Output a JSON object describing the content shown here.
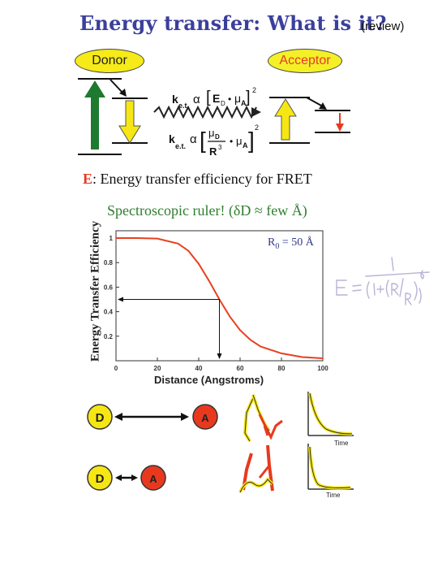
{
  "title": "Energy transfer: What is it?",
  "review_label": "(review)",
  "donor_label": "Donor",
  "acceptor_label": "Acceptor",
  "rate_expr": {
    "k": "k",
    "sub": "e.t.",
    "prop": "α",
    "e_term": "E",
    "e_sub": "D",
    "bullet": "•",
    "mu": "μ",
    "mu_sub_a": "A",
    "mu_sub_d": "D",
    "square": "2",
    "r": "R",
    "r_exp": "3"
  },
  "efficiency": {
    "letter": "E",
    "text": ": Energy transfer efficiency for FRET"
  },
  "ruler_text": "Spectroscopic ruler! (δD ≈ few Å)",
  "r0_text": "R",
  "r0_sub": "0",
  "r0_value": " = 50 Å",
  "chart_data": {
    "type": "line",
    "title": "",
    "xlabel": "Distance (Angstroms)",
    "ylabel": "Energy Transfer Efficiency",
    "xlim": [
      0,
      100
    ],
    "ylim": [
      0,
      1
    ],
    "xticks": [
      "0",
      "20",
      "40",
      "60",
      "80",
      "100"
    ],
    "yticks": [
      "0.2",
      "0.4",
      "0.6",
      "0.8",
      "1"
    ],
    "x": [
      0,
      10,
      20,
      30,
      35,
      40,
      45,
      50,
      55,
      60,
      65,
      70,
      80,
      90,
      100
    ],
    "series": [
      {
        "values": [
          1.0,
          1.0,
          0.996,
          0.955,
          0.896,
          0.79,
          0.65,
          0.5,
          0.36,
          0.25,
          0.17,
          0.115,
          0.06,
          0.03,
          0.02
        ]
      }
    ],
    "annotation": {
      "x": 50,
      "y": 0.5
    },
    "line_color": "#e8401f",
    "grid": false
  },
  "handwritten_formula": "E = 1 / (1 + (R/R0)^6)",
  "pairs": [
    {
      "d_label": "D",
      "a_label": "A",
      "separation": "far"
    },
    {
      "d_label": "D",
      "a_label": "A",
      "separation": "near"
    }
  ],
  "decay_label": "Time",
  "colors": {
    "title": "#3b3f9c",
    "yellow": "#f6e714",
    "red": "#e8391f",
    "green": "#1e7a2e",
    "curve": "#e8401f"
  }
}
